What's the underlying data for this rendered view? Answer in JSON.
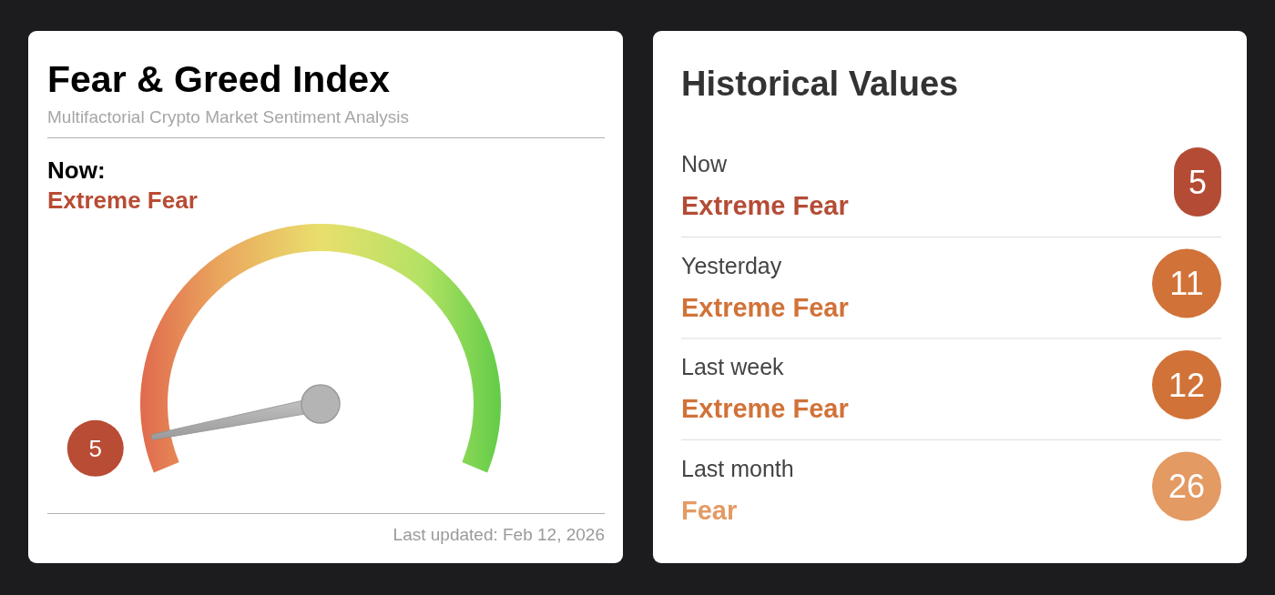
{
  "chart_data": [
    {
      "type": "other",
      "title": "Fear & Greed Index",
      "subtitle": "Multifactorial Crypto Market Sentiment Analysis",
      "categories": [
        "Extreme Fear"
      ],
      "values": [
        5
      ],
      "color": "#b84c34",
      "data_labels": true,
      "annotations": [
        "Now:",
        "Last updated: Feb 12, 2026"
      ]
    },
    {
      "type": "other",
      "title": "Historical Values",
      "categories": [
        "Now"
      ],
      "values": [
        5
      ],
      "color": "#b44c35",
      "data_labels": true,
      "annotations": [
        "Extreme Fear"
      ]
    },
    {
      "type": "other",
      "categories": [
        "Yesterday"
      ],
      "values": [
        11
      ],
      "color": "#d17238",
      "data_labels": true,
      "annotations": [
        "Extreme Fear"
      ]
    },
    {
      "type": "other",
      "categories": [
        "Last week"
      ],
      "values": [
        12
      ],
      "color": "#d17238",
      "data_labels": true,
      "annotations": [
        "Extreme Fear"
      ]
    },
    {
      "type": "other",
      "categories": [
        "Last month"
      ],
      "values": [
        26
      ],
      "color": "#e39a63",
      "data_labels": true,
      "annotations": [
        "Fear"
      ]
    }
  ]
}
